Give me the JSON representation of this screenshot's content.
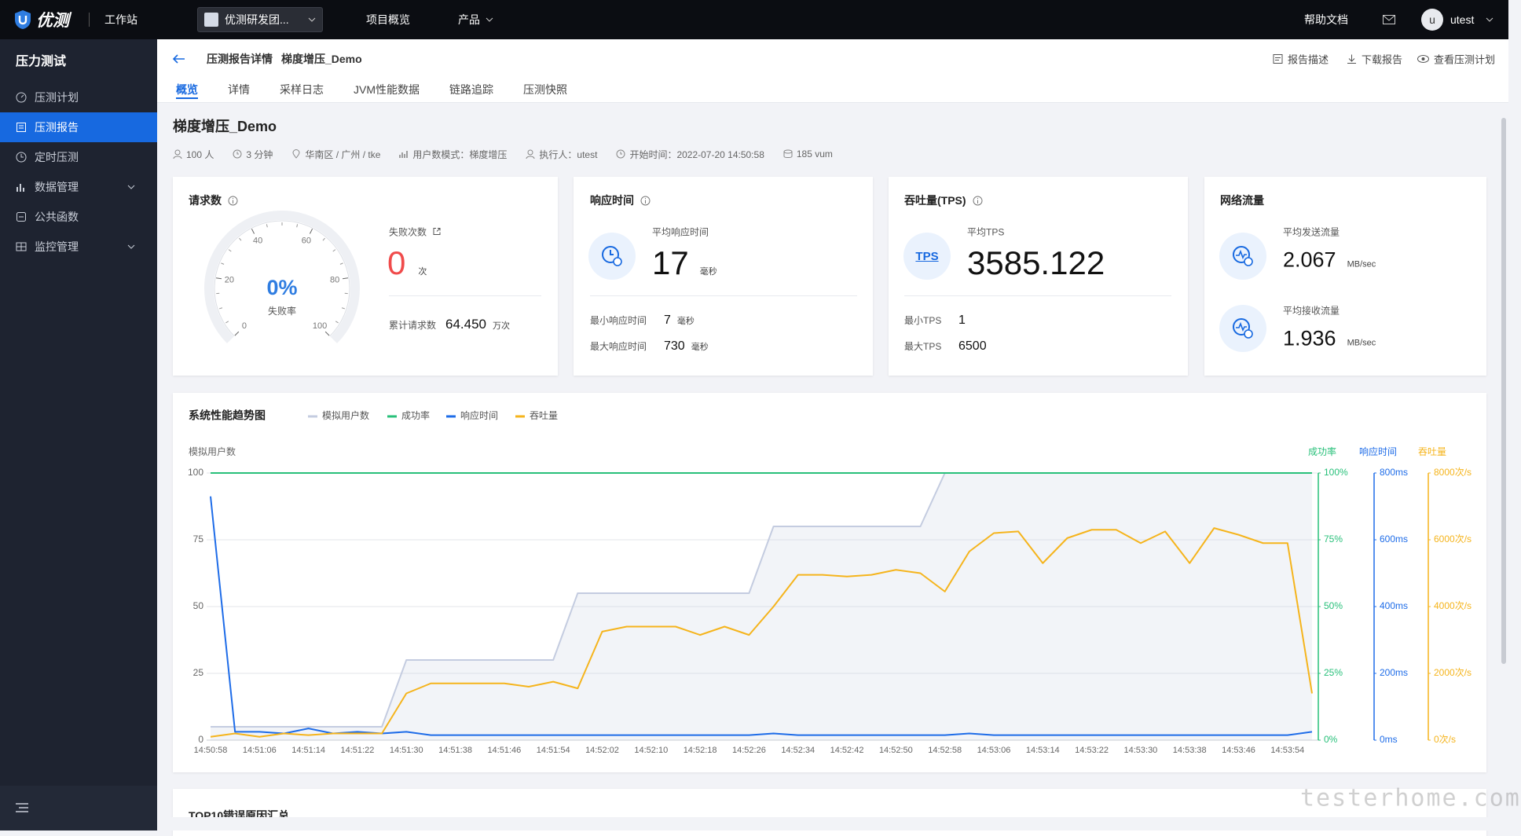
{
  "nav": {
    "logo": "优测",
    "workspace": "工作站",
    "team": "优测研发团...",
    "menu": [
      "项目概览",
      "产品"
    ],
    "help": "帮助文档",
    "avatar": "u",
    "user": "utest"
  },
  "sidebar": {
    "title": "压力测试",
    "items": [
      "压测计划",
      "压测报告",
      "定时压测",
      "数据管理",
      "公共函数",
      "监控管理"
    ],
    "active": 1
  },
  "header": {
    "breadcrumb": "压测报告详情",
    "name": "梯度增压_Demo",
    "actions": [
      "报告描述",
      "下载报告",
      "查看压测计划"
    ],
    "tabs": [
      "概览",
      "详情",
      "采样日志",
      "JVM性能数据",
      "链路追踪",
      "压测快照"
    ],
    "active_tab": 0
  },
  "summary": {
    "title": "梯度增压_Demo",
    "meta": [
      "100 人",
      "3 分钟",
      "华南区 / 广州 / tke",
      "用户数模式：梯度增压",
      "执行人：utest",
      "开始时间：2022-07-20 14:50:58",
      "185 vum"
    ]
  },
  "cards": {
    "requests": {
      "title": "请求数",
      "gauge": {
        "ticks": [
          0,
          20,
          40,
          60,
          80,
          100
        ],
        "value": 0,
        "value_label": "0%",
        "label": "失败率"
      },
      "failures": {
        "label": "失败次数",
        "value": 0,
        "unit": "次"
      },
      "total": {
        "label": "累计请求数",
        "value": "64.450",
        "unit": "万次"
      }
    },
    "response": {
      "title": "响应时间",
      "avg": {
        "label": "平均响应时间",
        "value": 17,
        "unit": "毫秒"
      },
      "min": {
        "label": "最小响应时间",
        "value": 7,
        "unit": "毫秒"
      },
      "max": {
        "label": "最大响应时间",
        "value": 730,
        "unit": "毫秒"
      }
    },
    "tps": {
      "title": "吞吐量(TPS)",
      "icon": "TPS",
      "avg": {
        "label": "平均TPS",
        "value": 3585.122
      },
      "min": {
        "label": "最小TPS",
        "value": 1
      },
      "max": {
        "label": "最大TPS",
        "value": 6500
      }
    },
    "network": {
      "title": "网络流量",
      "send": {
        "label": "平均发送流量",
        "value": 2.067,
        "unit": "MB/sec"
      },
      "receive": {
        "label": "平均接收流量",
        "value": 1.936,
        "unit": "MB/sec"
      }
    }
  },
  "chart_data": {
    "type": "line",
    "title": "系统性能趋势图",
    "categories": [
      "14:50:58",
      null,
      "14:51:06",
      null,
      "14:51:14",
      null,
      "14:51:22",
      null,
      "14:51:30",
      null,
      "14:51:38",
      null,
      "14:51:46",
      null,
      "14:51:54",
      null,
      "14:52:02",
      null,
      "14:52:10",
      null,
      "14:52:18",
      null,
      "14:52:26",
      null,
      "14:52:34",
      null,
      "14:52:42",
      null,
      "14:52:50",
      null,
      "14:52:58",
      null,
      "14:53:06",
      null,
      "14:53:14",
      null,
      "14:53:22",
      null,
      "14:53:30",
      null,
      "14:53:38",
      null,
      "14:53:46",
      null,
      "14:53:54",
      null
    ],
    "series": [
      {
        "name": "模拟用户数",
        "color": "#c4cce0",
        "area": true,
        "values": [
          5,
          5,
          5,
          5,
          5,
          5,
          5,
          5,
          30,
          30,
          30,
          30,
          30,
          30,
          30,
          55,
          55,
          55,
          55,
          55,
          55,
          55,
          55,
          80,
          80,
          80,
          80,
          80,
          80,
          80,
          100,
          100,
          100,
          100,
          100,
          100,
          100,
          100,
          100,
          100,
          100,
          100,
          100,
          100,
          100,
          100
        ]
      },
      {
        "name": "成功率",
        "color": "#28c07a",
        "axis": "y2",
        "values": [
          100,
          100,
          100,
          100,
          100,
          100,
          100,
          100,
          100,
          100,
          100,
          100,
          100,
          100,
          100,
          100,
          100,
          100,
          100,
          100,
          100,
          100,
          100,
          100,
          100,
          100,
          100,
          100,
          100,
          100,
          100,
          100,
          100,
          100,
          100,
          100,
          100,
          100,
          100,
          100,
          100,
          100,
          100,
          100,
          100,
          100
        ]
      },
      {
        "name": "响应时间",
        "color": "#1e6ce8",
        "axis": "y3",
        "values": [
          730,
          25,
          25,
          20,
          35,
          20,
          25,
          20,
          25,
          15,
          15,
          15,
          15,
          15,
          15,
          15,
          15,
          15,
          15,
          15,
          15,
          15,
          15,
          20,
          15,
          15,
          15,
          15,
          15,
          15,
          15,
          20,
          15,
          15,
          15,
          15,
          15,
          15,
          15,
          15,
          15,
          15,
          15,
          15,
          15,
          25
        ]
      },
      {
        "name": "吞吐量",
        "color": "#f5b41c",
        "axis": "y4",
        "values": [
          100,
          200,
          100,
          200,
          150,
          200,
          200,
          200,
          1400,
          1700,
          1700,
          1700,
          1700,
          1600,
          1750,
          1550,
          3250,
          3400,
          3400,
          3400,
          3150,
          3400,
          3150,
          4000,
          4950,
          4950,
          4900,
          4950,
          5100,
          5000,
          4450,
          5650,
          6200,
          6250,
          5300,
          6050,
          6300,
          6300,
          5900,
          6250,
          5300,
          6350,
          6150,
          5900,
          5900,
          1400
        ]
      }
    ],
    "ylabel": "模拟用户数",
    "ylim": [
      0,
      100
    ],
    "yticks": [
      0,
      25,
      50,
      75,
      100
    ],
    "y2label": "成功率",
    "y2lim": [
      0,
      100
    ],
    "y2ticks": [
      {
        "value": 0,
        "label": "0%"
      },
      {
        "value": 25,
        "label": "25%"
      },
      {
        "value": 50,
        "label": "50%"
      },
      {
        "value": 75,
        "label": "75%"
      },
      {
        "value": 100,
        "label": "100%"
      }
    ],
    "y3label": "响应时间",
    "y3lim": [
      0,
      800
    ],
    "y3ticks": [
      {
        "value": 0,
        "label": "0ms"
      },
      {
        "value": 200,
        "label": "200ms"
      },
      {
        "value": 400,
        "label": "400ms"
      },
      {
        "value": 600,
        "label": "600ms"
      },
      {
        "value": 800,
        "label": "800ms"
      }
    ],
    "y4label": "吞吐量",
    "y4lim": [
      0,
      8000
    ],
    "y4ticks": [
      {
        "value": 0,
        "label": "0次/s"
      },
      {
        "value": 2000,
        "label": "2000次/s"
      },
      {
        "value": 4000,
        "label": "4000次/s"
      },
      {
        "value": 6000,
        "label": "6000次/s"
      },
      {
        "value": 8000,
        "label": "8000次/s"
      }
    ],
    "grid": true
  },
  "bottom_card": {
    "title": "TOP10错误原因汇总"
  },
  "watermark": "testerhome.com"
}
